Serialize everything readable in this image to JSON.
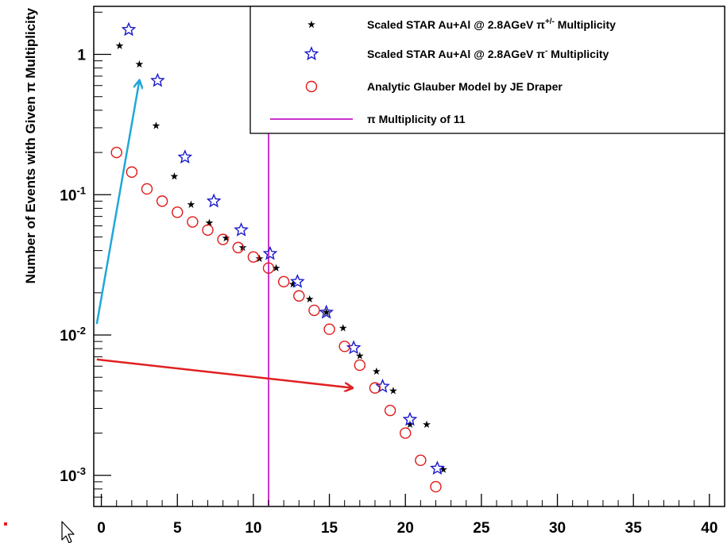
{
  "chart_data": {
    "type": "scatter",
    "y_scale": "log",
    "xlim": [
      -0.5,
      41
    ],
    "ylim": [
      0.0006,
      2.2
    ],
    "x_ticks": [
      0,
      5,
      10,
      15,
      20,
      25,
      30,
      35,
      40
    ],
    "y_ticks": [
      {
        "value": 1,
        "mantissa": "1",
        "exponent": ""
      },
      {
        "value": 0.1,
        "mantissa": "10",
        "exponent": "-1"
      },
      {
        "value": 0.01,
        "mantissa": "10",
        "exponent": "-2"
      },
      {
        "value": 0.001,
        "mantissa": "10",
        "exponent": "-3"
      }
    ],
    "ylabel_main": "Number of Events with Given ",
    "ylabel_sym": "π",
    "ylabel_tail": " Multiplicity",
    "xlabel": "",
    "series": [
      {
        "name": "Scaled STAR Au+Al @ 2.8AGeV π+/- Multiplicity",
        "legend_main": "Scaled STAR Au+Al @ 2.8AGeV π",
        "legend_sup": "+/-",
        "legend_tail": " Multiplicity",
        "marker": "black-star",
        "color": "#000000",
        "points": [
          [
            1.2,
            1.15
          ],
          [
            2.5,
            0.85
          ],
          [
            3.6,
            0.31
          ],
          [
            4.8,
            0.135
          ],
          [
            5.9,
            0.085
          ],
          [
            7.1,
            0.063
          ],
          [
            8.2,
            0.049
          ],
          [
            9.3,
            0.042
          ],
          [
            10.4,
            0.035
          ],
          [
            11.5,
            0.03
          ],
          [
            12.6,
            0.023
          ],
          [
            13.7,
            0.018
          ],
          [
            14.8,
            0.0145
          ],
          [
            15.9,
            0.0112
          ],
          [
            17.0,
            0.0071
          ],
          [
            18.1,
            0.0055
          ],
          [
            19.2,
            0.004
          ],
          [
            20.3,
            0.0023
          ],
          [
            21.4,
            0.0023
          ],
          [
            22.5,
            0.0011
          ]
        ]
      },
      {
        "name": "Scaled STAR Au+Al @ 2.8AGeV π- Multiplicity",
        "legend_main": "Scaled STAR Au+Al @ 2.8AGeV π",
        "legend_sup": "-",
        "legend_tail": " Multiplicity",
        "marker": "blue-open-star",
        "color": "#1a1acc",
        "points": [
          [
            1.8,
            1.5
          ],
          [
            3.7,
            0.65
          ],
          [
            5.5,
            0.185
          ],
          [
            7.4,
            0.09
          ],
          [
            9.2,
            0.056
          ],
          [
            11.1,
            0.038
          ],
          [
            12.9,
            0.024
          ],
          [
            14.8,
            0.0145
          ],
          [
            16.6,
            0.0081
          ],
          [
            18.5,
            0.0043
          ],
          [
            20.3,
            0.0025
          ],
          [
            22.1,
            0.00112
          ]
        ]
      },
      {
        "name": "Analytic Glauber Model by JE Draper",
        "legend_main": "Analytic Glauber Model by JE Draper",
        "legend_sup": "",
        "legend_tail": "",
        "marker": "red-open-circle",
        "color": "#e01818",
        "points": [
          [
            1,
            0.2
          ],
          [
            2,
            0.145
          ],
          [
            3,
            0.11
          ],
          [
            4,
            0.09
          ],
          [
            5,
            0.075
          ],
          [
            6,
            0.064
          ],
          [
            7,
            0.056
          ],
          [
            8,
            0.048
          ],
          [
            9,
            0.042
          ],
          [
            10,
            0.036
          ],
          [
            11,
            0.03
          ],
          [
            12,
            0.024
          ],
          [
            13,
            0.019
          ],
          [
            14,
            0.015
          ],
          [
            15,
            0.011
          ],
          [
            16,
            0.0083
          ],
          [
            17,
            0.0061
          ],
          [
            18,
            0.0042
          ],
          [
            19,
            0.0029
          ],
          [
            20,
            0.002
          ],
          [
            21,
            0.00128
          ],
          [
            22,
            0.00083
          ]
        ]
      },
      {
        "name": "π Multiplicity of 11",
        "legend_main": "π Multiplicity of 11",
        "legend_sup": "",
        "legend_tail": "",
        "marker": "vertical-line",
        "color": "#cc33cc",
        "x": 11
      }
    ],
    "annotation_arrows": [
      {
        "name": "blue-arrow",
        "color": "#1fa8d8",
        "from": [
          -0.3,
          0.012
        ],
        "to": [
          2.5,
          0.65
        ]
      },
      {
        "name": "red-arrow",
        "color": "#e02020",
        "from": [
          -0.3,
          0.0067
        ],
        "to": [
          16.5,
          0.0042
        ]
      }
    ],
    "legend_position": "top-right",
    "grid": false
  },
  "overlay": {
    "cursor": "mouse-pointer-icon",
    "dot_color": "#e02020"
  }
}
